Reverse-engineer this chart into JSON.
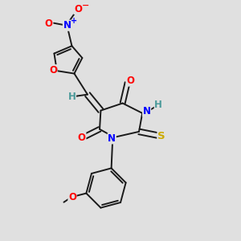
{
  "background_color": "#e0e0e0",
  "bond_color": "#1a1a1a",
  "atom_colors": {
    "O": "#ff0000",
    "N": "#0000ff",
    "S": "#ccaa00",
    "H": "#4a9a9a",
    "C": "#1a1a1a"
  },
  "figsize": [
    3.0,
    3.0
  ],
  "dpi": 100
}
